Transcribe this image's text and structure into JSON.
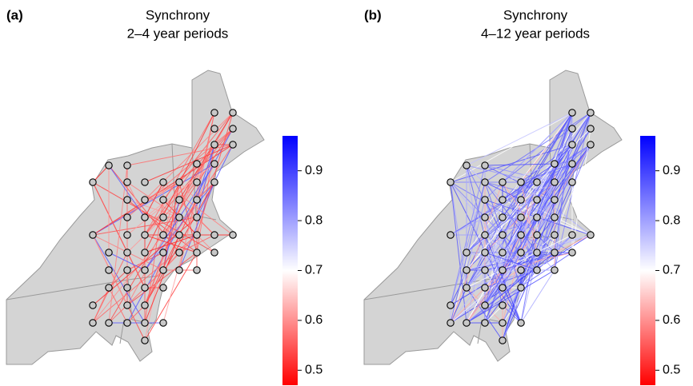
{
  "panels": [
    {
      "label": "(a)",
      "title": [
        "Synchrony",
        "2–4 year periods"
      ],
      "colorbar": {
        "lim": [
          0.47,
          0.97
        ],
        "ticks": [
          0.5,
          0.6,
          0.7,
          0.8,
          0.9
        ]
      }
    },
    {
      "label": "(b)",
      "title": [
        "Synchrony",
        "4–12 year periods"
      ],
      "colorbar": {
        "lim": [
          0.47,
          0.97
        ],
        "ticks": [
          0.5,
          0.6,
          0.7,
          0.8,
          0.9
        ]
      }
    }
  ]
}
